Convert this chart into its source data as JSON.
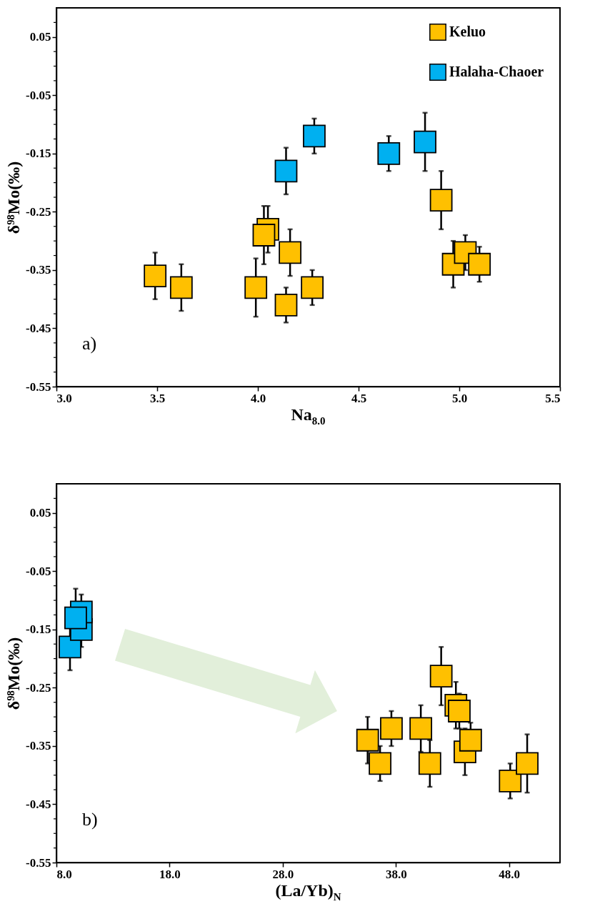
{
  "chart_data": [
    {
      "type": "scatter",
      "xlabel": "Na$_{8.0}$",
      "ylabel": "δ⁹⁸Mo(‰)",
      "annotations": [
        "a)"
      ],
      "marker": "square",
      "legend": "top right",
      "grid": false,
      "xlim": [
        3.0,
        5.5
      ],
      "xticks": [
        {
          "value": 3,
          "label": "3.0"
        },
        3.5,
        {
          "value": 4,
          "label": "4.0"
        },
        4.5,
        {
          "value": 5,
          "label": "5.0"
        },
        5.5
      ],
      "ylim": [
        -0.55,
        0.1
      ],
      "yticks": [
        -0.55,
        {
          "value": -0.525,
          "label": null
        },
        {
          "value": -0.5,
          "label": null
        },
        {
          "value": -0.475,
          "label": null
        },
        -0.45,
        {
          "value": -0.425,
          "label": null
        },
        {
          "value": -0.4,
          "label": null
        },
        {
          "value": -0.375,
          "label": null
        },
        -0.35,
        {
          "value": -0.325,
          "label": null
        },
        {
          "value": -0.3,
          "label": null
        },
        {
          "value": -0.275,
          "label": null
        },
        -0.25,
        {
          "value": -0.225,
          "label": null
        },
        {
          "value": -0.2,
          "label": null
        },
        {
          "value": -0.175,
          "label": null
        },
        -0.15,
        {
          "value": -0.125,
          "label": null
        },
        {
          "value": -0.1,
          "label": null
        },
        {
          "value": -0.075,
          "label": null
        },
        -0.05,
        {
          "value": -0.025,
          "label": null
        },
        {
          "value": 0,
          "label": null
        },
        {
          "value": 0.025,
          "label": null
        },
        0.05,
        {
          "value": 0.075,
          "label": null
        }
      ],
      "series": [
        {
          "name": "Keluo",
          "color": "#ffc000",
          "x": [
            3.49,
            3.62,
            3.99,
            4.05,
            4.03,
            4.16,
            4.14,
            4.27,
            4.91,
            4.97,
            5.03,
            5.1
          ],
          "values": [
            -0.36,
            -0.38,
            -0.38,
            -0.28,
            -0.29,
            -0.32,
            -0.41,
            -0.38,
            -0.23,
            -0.34,
            -0.32,
            -0.34
          ],
          "errors": [
            0.04,
            0.04,
            0.05,
            0.04,
            0.05,
            0.04,
            0.03,
            0.03,
            0.05,
            0.04,
            0.03,
            0.03
          ]
        },
        {
          "name": "Halaha-Chaoer",
          "color": "#00b0f0",
          "x": [
            4.14,
            4.28,
            4.65,
            4.83
          ],
          "values": [
            -0.18,
            -0.12,
            -0.15,
            -0.13
          ],
          "errors": [
            0.04,
            0.03,
            0.03,
            0.05
          ]
        }
      ]
    },
    {
      "type": "scatter",
      "xlabel": "(La/Yb)$_{N}$",
      "ylabel": "δ⁹⁸Mo(‰)",
      "annotations": [
        "b)"
      ],
      "marker": "square",
      "legend": "top right",
      "grid": false,
      "xlim": [
        8,
        52.5
      ],
      "xticks": [
        {
          "value": 8,
          "label": "8.0"
        },
        {
          "value": 18,
          "label": "18.0"
        },
        {
          "value": 28,
          "label": "28.0"
        },
        {
          "value": 38,
          "label": "38.0"
        },
        {
          "value": 48,
          "label": "48.0"
        }
      ],
      "ylim": [
        -0.55,
        0.1
      ],
      "yticks": [
        -0.55,
        {
          "value": -0.525,
          "label": null
        },
        {
          "value": -0.5,
          "label": null
        },
        {
          "value": -0.475,
          "label": null
        },
        -0.45,
        {
          "value": -0.425,
          "label": null
        },
        {
          "value": -0.4,
          "label": null
        },
        {
          "value": -0.375,
          "label": null
        },
        -0.35,
        {
          "value": -0.325,
          "label": null
        },
        {
          "value": -0.3,
          "label": null
        },
        {
          "value": -0.275,
          "label": null
        },
        -0.25,
        {
          "value": -0.225,
          "label": null
        },
        {
          "value": -0.2,
          "label": null
        },
        {
          "value": -0.175,
          "label": null
        },
        -0.15,
        {
          "value": -0.125,
          "label": null
        },
        {
          "value": -0.1,
          "label": null
        },
        {
          "value": -0.075,
          "label": null
        },
        -0.05,
        {
          "value": -0.025,
          "label": null
        },
        {
          "value": 0,
          "label": null
        },
        {
          "value": 0.025,
          "label": null
        },
        0.05,
        {
          "value": 0.075,
          "label": null
        }
      ],
      "series": [
        {
          "name": "Keluo",
          "color": "#ffc000",
          "x": [
            35.5,
            36.6,
            37.6,
            40.2,
            41.0,
            42.0,
            43.3,
            43.6,
            44.1,
            44.6,
            48.1,
            49.6
          ],
          "values": [
            -0.34,
            -0.38,
            -0.32,
            -0.32,
            -0.38,
            -0.23,
            -0.28,
            -0.29,
            -0.36,
            -0.34,
            -0.41,
            -0.38
          ],
          "errors": [
            0.04,
            0.03,
            0.03,
            0.04,
            0.04,
            0.05,
            0.04,
            0.03,
            0.04,
            0.03,
            0.03,
            0.05
          ]
        },
        {
          "name": "Halaha-Chaoer",
          "color": "#00b0f0",
          "x": [
            9.2,
            10.2,
            10.2,
            9.7
          ],
          "values": [
            -0.18,
            -0.15,
            -0.12,
            -0.13
          ],
          "errors": [
            0.04,
            0.03,
            0.03,
            0.05
          ]
        }
      ]
    }
  ]
}
